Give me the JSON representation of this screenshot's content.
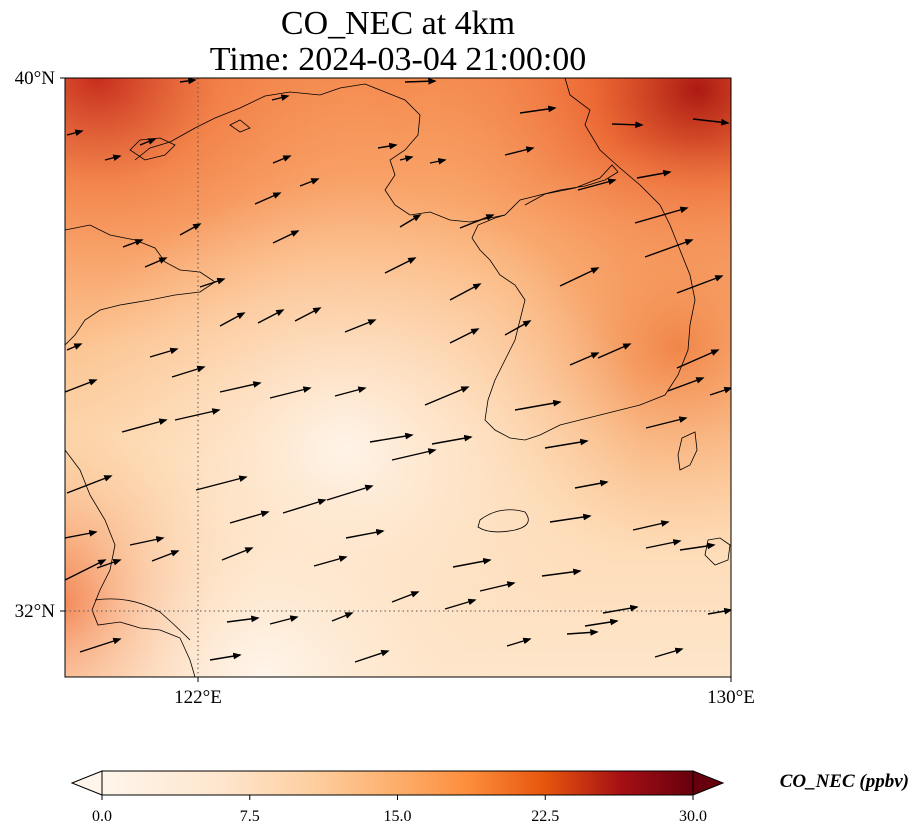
{
  "map": {
    "title_line1": "CO_NEC at 4km",
    "title_line2": "Time: 2024-03-04 21:00:00",
    "variable": "CO_NEC",
    "level": "4km",
    "time": "2024-03-04 21:00:00",
    "lon_range": [
      120,
      130
    ],
    "lat_range": [
      31,
      40
    ],
    "gridlines": "dotted",
    "lat_ticks": [
      "40°N",
      "32°N"
    ],
    "lon_ticks": [
      "122°E",
      "130°E"
    ],
    "colormap": [
      "#fff5eb",
      "#fdd0a2",
      "#fd8d3c",
      "#d94801",
      "#a50f15",
      "#67000d"
    ],
    "colorbar": {
      "label": "CO_NEC (ppbv)",
      "ticks": [
        "0.0",
        "7.5",
        "15.0",
        "22.5",
        "30.0"
      ],
      "min": 0,
      "max": 30,
      "extend": "both"
    },
    "wind_vectors": "present"
  }
}
